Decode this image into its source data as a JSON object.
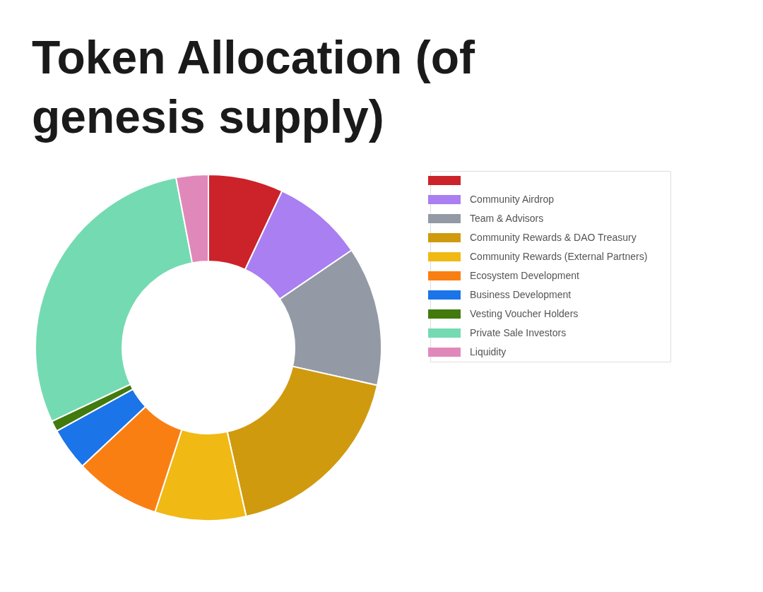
{
  "chart_data": {
    "type": "donut",
    "title": "Token Allocation (of genesis supply)",
    "categories": [
      null,
      "Community Airdrop",
      "Team & Advisors",
      "Community Rewards & DAO Treasury",
      "Community Rewards (External Partners)",
      "Ecosystem Development",
      "Business Development",
      "Vesting Voucher Holders",
      "Private Sale Investors",
      "Liquidity"
    ],
    "values": [
      7,
      8.5,
      13,
      18,
      8.5,
      8,
      4,
      1,
      29,
      3
    ],
    "colors": [
      "#cc2229",
      "#a97ff2",
      "#939aa5",
      "#d09a0f",
      "#f0b914",
      "#fa7f13",
      "#1b74e8",
      "#427a0e",
      "#74dab2",
      "#e188ba"
    ],
    "legend": "right"
  }
}
